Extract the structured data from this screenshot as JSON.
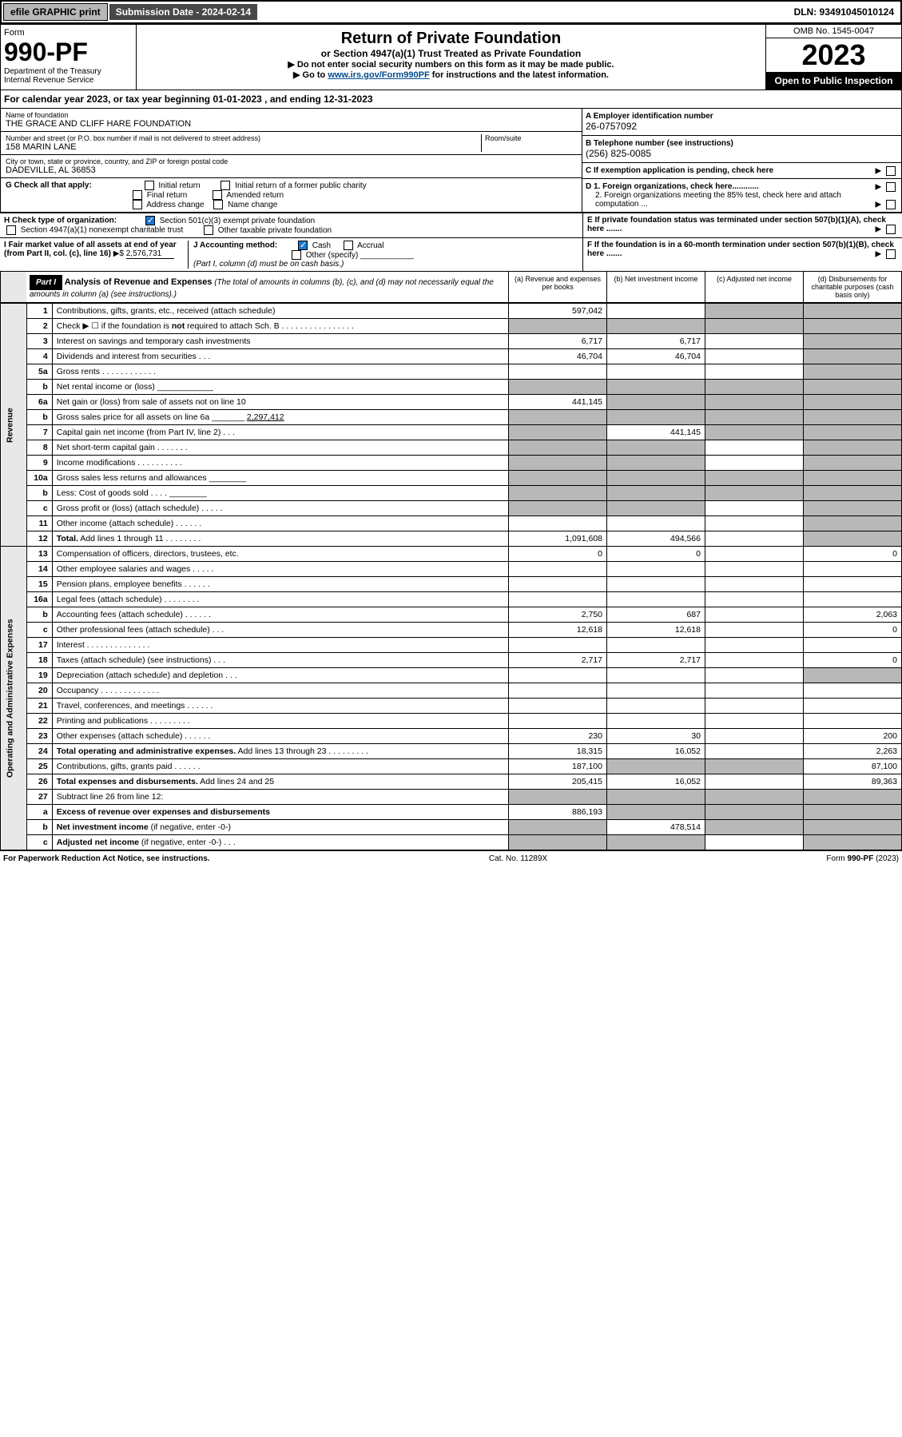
{
  "topbar": {
    "efile": "efile GRAPHIC print",
    "subdate_label": "Submission Date - 2024-02-14",
    "dln": "DLN: 93491045010124"
  },
  "header": {
    "form_label": "Form",
    "form_no": "990-PF",
    "dept": "Department of the Treasury",
    "irs": "Internal Revenue Service",
    "title": "Return of Private Foundation",
    "subtitle": "or Section 4947(a)(1) Trust Treated as Private Foundation",
    "note1": "▶ Do not enter social security numbers on this form as it may be made public.",
    "note2_pre": "▶ Go to ",
    "note2_link": "www.irs.gov/Form990PF",
    "note2_post": " for instructions and the latest information.",
    "omb": "OMB No. 1545-0047",
    "year": "2023",
    "open": "Open to Public Inspection"
  },
  "calyear": "For calendar year 2023, or tax year beginning 01-01-2023            , and ending 12-31-2023",
  "info": {
    "name_lbl": "Name of foundation",
    "name": "THE GRACE AND CLIFF HARE FOUNDATION",
    "addr_lbl": "Number and street (or P.O. box number if mail is not delivered to street address)",
    "addr": "158 MARIN LANE",
    "room_lbl": "Room/suite",
    "city_lbl": "City or town, state or province, country, and ZIP or foreign postal code",
    "city": "DADEVILLE, AL  36853",
    "ein_lbl": "A Employer identification number",
    "ein": "26-0757092",
    "phone_lbl": "B Telephone number (see instructions)",
    "phone": "(256) 825-0085",
    "c_lbl": "C If exemption application is pending, check here",
    "g_lbl": "G Check all that apply:",
    "g_opts": [
      "Initial return",
      "Initial return of a former public charity",
      "Final return",
      "Amended return",
      "Address change",
      "Name change"
    ],
    "d1": "D 1. Foreign organizations, check here............",
    "d2": "2. Foreign organizations meeting the 85% test, check here and attach computation ...",
    "h_lbl": "H Check type of organization:",
    "h1": "Section 501(c)(3) exempt private foundation",
    "h2": "Section 4947(a)(1) nonexempt charitable trust",
    "h3": "Other taxable private foundation",
    "e_lbl": "E If private foundation status was terminated under section 507(b)(1)(A), check here .......",
    "i_lbl": "I Fair market value of all assets at end of year (from Part II, col. (c), line 16)",
    "i_val": "2,576,731",
    "j_lbl": "J Accounting method:",
    "j_cash": "Cash",
    "j_accrual": "Accrual",
    "j_other": "Other (specify)",
    "j_note": "(Part I, column (d) must be on cash basis.)",
    "f_lbl": "F If the foundation is in a 60-month termination under section 507(b)(1)(B), check here ......."
  },
  "part1": {
    "label": "Part I",
    "title": "Analysis of Revenue and Expenses",
    "note": "(The total of amounts in columns (b), (c), and (d) may not necessarily equal the amounts in column (a) (see instructions).)",
    "cols": {
      "a": "(a)   Revenue and expenses per books",
      "b": "(b)   Net investment income",
      "c": "(c)   Adjusted net income",
      "d": "(d)   Disbursements for charitable purposes (cash basis only)"
    }
  },
  "sections": {
    "revenue": "Revenue",
    "expenses": "Operating and Administrative Expenses"
  },
  "rows": [
    {
      "n": "1",
      "d": "Contributions, gifts, grants, etc., received (attach schedule)",
      "a": "597,042",
      "b": "",
      "c": "g",
      "dcol": "g"
    },
    {
      "n": "2",
      "d": "Check ▶ ☐ if the foundation is <b>not</b> required to attach Sch. B   .  .  .  .  .  .  .  .  .  .  .  .  .  .  .  .",
      "a": "g",
      "b": "g",
      "c": "g",
      "dcol": "g"
    },
    {
      "n": "3",
      "d": "Interest on savings and temporary cash investments",
      "a": "6,717",
      "b": "6,717",
      "c": "",
      "dcol": "g"
    },
    {
      "n": "4",
      "d": "Dividends and interest from securities   .   .   .",
      "a": "46,704",
      "b": "46,704",
      "c": "",
      "dcol": "g"
    },
    {
      "n": "5a",
      "d": "Gross rents   .   .   .   .   .   .   .   .   .   .   .   .",
      "a": "",
      "b": "",
      "c": "",
      "dcol": "g"
    },
    {
      "n": "b",
      "d": "Net rental income or (loss)  ____________",
      "a": "g",
      "b": "g",
      "c": "g",
      "dcol": "g"
    },
    {
      "n": "6a",
      "d": "Net gain or (loss) from sale of assets not on line 10",
      "a": "441,145",
      "b": "g",
      "c": "g",
      "dcol": "g"
    },
    {
      "n": "b",
      "d": "Gross sales price for all assets on line 6a _______ <u>2,297,412</u>",
      "a": "g",
      "b": "g",
      "c": "g",
      "dcol": "g"
    },
    {
      "n": "7",
      "d": "Capital gain net income (from Part IV, line 2)   .   .   .",
      "a": "g",
      "b": "441,145",
      "c": "g",
      "dcol": "g"
    },
    {
      "n": "8",
      "d": "Net short-term capital gain  .   .   .   .   .   .   .",
      "a": "g",
      "b": "g",
      "c": "",
      "dcol": "g"
    },
    {
      "n": "9",
      "d": "Income modifications .   .   .   .   .   .   .   .   .   .",
      "a": "g",
      "b": "g",
      "c": "",
      "dcol": "g"
    },
    {
      "n": "10a",
      "d": "Gross sales less returns and allowances  ________",
      "a": "g",
      "b": "g",
      "c": "g",
      "dcol": "g"
    },
    {
      "n": "b",
      "d": "Less: Cost of goods sold   .   .   .   .  ________",
      "a": "g",
      "b": "g",
      "c": "g",
      "dcol": "g"
    },
    {
      "n": "c",
      "d": "Gross profit or (loss) (attach schedule)   .   .   .   .   .",
      "a": "g",
      "b": "g",
      "c": "",
      "dcol": "g"
    },
    {
      "n": "11",
      "d": "Other income (attach schedule)   .   .   .   .   .   .",
      "a": "",
      "b": "",
      "c": "",
      "dcol": "g"
    },
    {
      "n": "12",
      "d": "<b>Total.</b> Add lines 1 through 11   .   .   .   .   .   .   .   .",
      "a": "1,091,608",
      "b": "494,566",
      "c": "",
      "dcol": "g"
    }
  ],
  "exp_rows": [
    {
      "n": "13",
      "d": "Compensation of officers, directors, trustees, etc.",
      "a": "0",
      "b": "0",
      "c": "",
      "dcol": "0"
    },
    {
      "n": "14",
      "d": "Other employee salaries and wages   .   .   .   .   .",
      "a": "",
      "b": "",
      "c": "",
      "dcol": ""
    },
    {
      "n": "15",
      "d": "Pension plans, employee benefits  .   .   .   .   .   .",
      "a": "",
      "b": "",
      "c": "",
      "dcol": ""
    },
    {
      "n": "16a",
      "d": "Legal fees (attach schedule) .   .   .   .   .   .   .   .",
      "a": "",
      "b": "",
      "c": "",
      "dcol": ""
    },
    {
      "n": "b",
      "d": "Accounting fees (attach schedule) .   .   .   .   .   .",
      "a": "2,750",
      "b": "687",
      "c": "",
      "dcol": "2,063"
    },
    {
      "n": "c",
      "d": "Other professional fees (attach schedule)   .   .   .",
      "a": "12,618",
      "b": "12,618",
      "c": "",
      "dcol": "0"
    },
    {
      "n": "17",
      "d": "Interest  .   .   .   .   .   .   .   .   .   .   .   .   .   .",
      "a": "",
      "b": "",
      "c": "",
      "dcol": ""
    },
    {
      "n": "18",
      "d": "Taxes (attach schedule) (see instructions)   .   .   .",
      "a": "2,717",
      "b": "2,717",
      "c": "",
      "dcol": "0"
    },
    {
      "n": "19",
      "d": "Depreciation (attach schedule) and depletion   .   .   .",
      "a": "",
      "b": "",
      "c": "",
      "dcol": "g"
    },
    {
      "n": "20",
      "d": "Occupancy .   .   .   .   .   .   .   .   .   .   .   .   .",
      "a": "",
      "b": "",
      "c": "",
      "dcol": ""
    },
    {
      "n": "21",
      "d": "Travel, conferences, and meetings .   .   .   .   .   .",
      "a": "",
      "b": "",
      "c": "",
      "dcol": ""
    },
    {
      "n": "22",
      "d": "Printing and publications .   .   .   .   .   .   .   .   .",
      "a": "",
      "b": "",
      "c": "",
      "dcol": ""
    },
    {
      "n": "23",
      "d": "Other expenses (attach schedule)  .   .   .   .   .   .",
      "a": "230",
      "b": "30",
      "c": "",
      "dcol": "200"
    },
    {
      "n": "24",
      "d": "<b>Total operating and administrative expenses.</b> Add lines 13 through 23   .   .   .   .   .   .   .   .   .",
      "a": "18,315",
      "b": "16,052",
      "c": "",
      "dcol": "2,263"
    },
    {
      "n": "25",
      "d": "Contributions, gifts, grants paid   .   .   .   .   .   .",
      "a": "187,100",
      "b": "g",
      "c": "g",
      "dcol": "87,100"
    },
    {
      "n": "26",
      "d": "<b>Total expenses and disbursements.</b> Add lines 24 and 25",
      "a": "205,415",
      "b": "16,052",
      "c": "",
      "dcol": "89,363"
    },
    {
      "n": "27",
      "d": "Subtract line 26 from line 12:",
      "a": "g",
      "b": "g",
      "c": "g",
      "dcol": "g"
    },
    {
      "n": "a",
      "d": "<b>Excess of revenue over expenses and disbursements</b>",
      "a": "886,193",
      "b": "g",
      "c": "g",
      "dcol": "g"
    },
    {
      "n": "b",
      "d": "<b>Net investment income</b> (if negative, enter -0-)",
      "a": "g",
      "b": "478,514",
      "c": "g",
      "dcol": "g"
    },
    {
      "n": "c",
      "d": "<b>Adjusted net income</b> (if negative, enter -0-)  .   .   .",
      "a": "g",
      "b": "g",
      "c": "",
      "dcol": "g"
    }
  ],
  "footer": {
    "left": "For Paperwork Reduction Act Notice, see instructions.",
    "mid": "Cat. No. 11289X",
    "right": "Form 990-PF (2023)"
  }
}
